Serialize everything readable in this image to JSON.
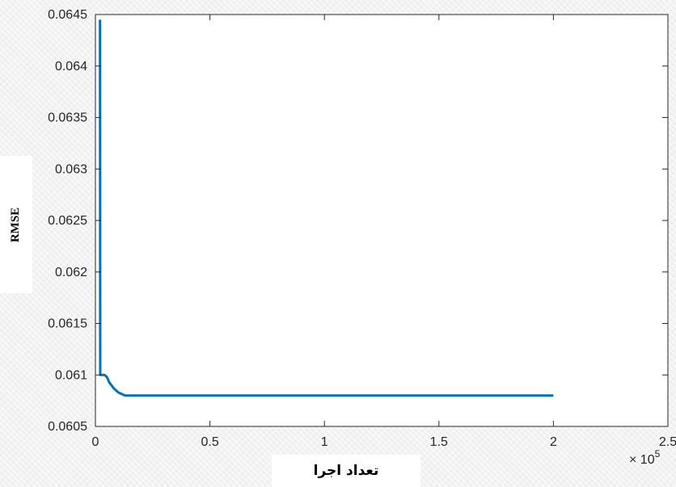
{
  "chart_data": {
    "type": "line",
    "xlabel": "تعداد اجرا",
    "ylabel": "RMSE",
    "x_multiplier_label": {
      "base": "× 10",
      "exponent": "5"
    },
    "xlim": [
      0,
      2.5
    ],
    "ylim": [
      0.0605,
      0.0645
    ],
    "x_ticks": [
      "0",
      "0.5",
      "1",
      "1.5",
      "2",
      "2.5"
    ],
    "y_ticks": [
      "0.0605",
      "0.061",
      "0.0615",
      "0.062",
      "0.0625",
      "0.063",
      "0.0635",
      "0.064",
      "0.0645"
    ],
    "grid": false,
    "series": [
      {
        "color": "#0072bd",
        "x": [
          0.02,
          0.021,
          0.025,
          0.04,
          0.05,
          0.06,
          0.07,
          0.08,
          0.09,
          0.1,
          0.11,
          0.12,
          0.13,
          0.15,
          0.2,
          0.5,
          1.0,
          1.5,
          2.0
        ],
        "y": [
          0.06445,
          0.061,
          0.061,
          0.061,
          0.06098,
          0.06093,
          0.0609,
          0.06087,
          0.06085,
          0.06083,
          0.06082,
          0.06081,
          0.0608,
          0.0608,
          0.0608,
          0.0608,
          0.0608,
          0.0608,
          0.0608
        ]
      }
    ]
  }
}
